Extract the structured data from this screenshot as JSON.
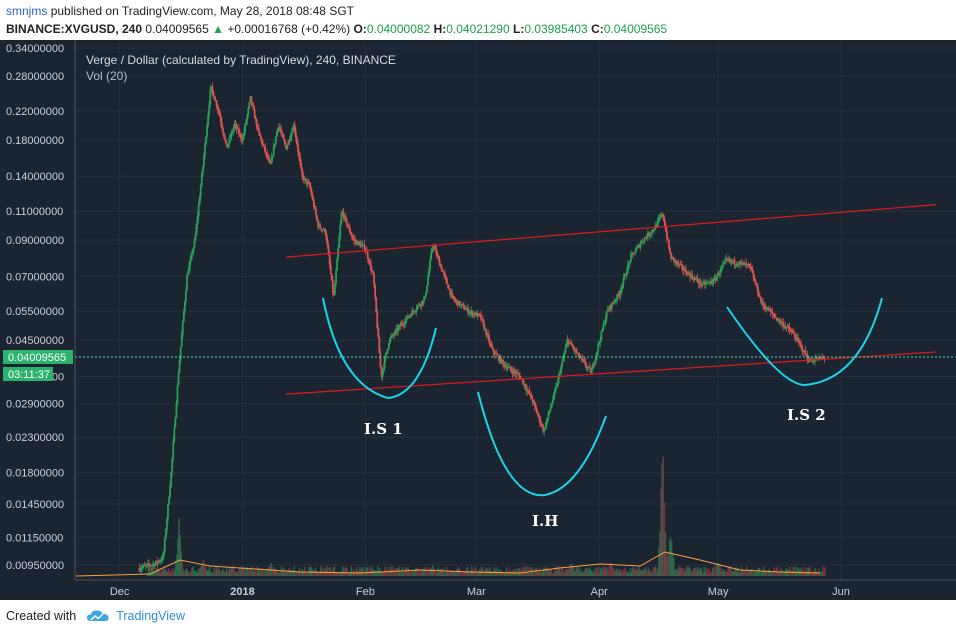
{
  "header": {
    "user": "smnjms",
    "published": "published on TradingView.com, May 28, 2018 08:48 SGT"
  },
  "ohlc": {
    "symbol": "BINANCE:XVGUSD, 240",
    "last": "0.04009565",
    "change": "+0.00016768 (+0.42%)",
    "o_label": "O:",
    "o": "0.04000082",
    "h_label": "H:",
    "h": "0.04021290",
    "l_label": "L:",
    "l": "0.03985403",
    "c_label": "C:",
    "c": "0.04009565"
  },
  "chart_data": {
    "type": "candlestick",
    "title": "Verge / Dollar (calculated by TradingView), 240, BINANCE",
    "subtitle": "Vol (20)",
    "y_scale": "log",
    "y_ticks": [
      "0.34000000",
      "0.28000000",
      "0.22000000",
      "0.18000000",
      "0.14000000",
      "0.11000000",
      "0.09000000",
      "0.07000000",
      "0.05500000",
      "0.04500000",
      "0.03500000",
      "0.02900000",
      "0.02300000",
      "0.01800000",
      "0.01450000",
      "0.01150000",
      "0.00950000"
    ],
    "x_ticks": [
      "Dec",
      "2018",
      "Feb",
      "Mar",
      "Apr",
      "May",
      "Jun"
    ],
    "last_price_label": "0.04009565",
    "countdown_label": "03:11:37",
    "price_path": [
      [
        "2017-12-06",
        0.0093
      ],
      [
        "2017-12-10",
        0.0096
      ],
      [
        "2017-12-12",
        0.01
      ],
      [
        "2017-12-14",
        0.018
      ],
      [
        "2017-12-16",
        0.038
      ],
      [
        "2017-12-18",
        0.07
      ],
      [
        "2017-12-20",
        0.09
      ],
      [
        "2017-12-22",
        0.15
      ],
      [
        "2017-12-24",
        0.26
      ],
      [
        "2017-12-26",
        0.22
      ],
      [
        "2017-12-28",
        0.17
      ],
      [
        "2017-12-30",
        0.2
      ],
      [
        "2018-01-01",
        0.18
      ],
      [
        "2018-01-03",
        0.24
      ],
      [
        "2018-01-05",
        0.19
      ],
      [
        "2018-01-08",
        0.15
      ],
      [
        "2018-01-10",
        0.2
      ],
      [
        "2018-01-12",
        0.17
      ],
      [
        "2018-01-14",
        0.2
      ],
      [
        "2018-01-16",
        0.14
      ],
      [
        "2018-01-18",
        0.13
      ],
      [
        "2018-01-20",
        0.1
      ],
      [
        "2018-01-22",
        0.095
      ],
      [
        "2018-01-24",
        0.06
      ],
      [
        "2018-01-26",
        0.11
      ],
      [
        "2018-01-29",
        0.09
      ],
      [
        "2018-02-01",
        0.085
      ],
      [
        "2018-02-03",
        0.07
      ],
      [
        "2018-02-05",
        0.035
      ],
      [
        "2018-02-07",
        0.045
      ],
      [
        "2018-02-10",
        0.05
      ],
      [
        "2018-02-13",
        0.055
      ],
      [
        "2018-02-16",
        0.06
      ],
      [
        "2018-02-18",
        0.088
      ],
      [
        "2018-02-20",
        0.075
      ],
      [
        "2018-02-23",
        0.06
      ],
      [
        "2018-02-27",
        0.055
      ],
      [
        "2018-03-02",
        0.053
      ],
      [
        "2018-03-05",
        0.042
      ],
      [
        "2018-03-08",
        0.038
      ],
      [
        "2018-03-12",
        0.035
      ],
      [
        "2018-03-15",
        0.03
      ],
      [
        "2018-03-18",
        0.024
      ],
      [
        "2018-03-21",
        0.032
      ],
      [
        "2018-03-24",
        0.045
      ],
      [
        "2018-03-27",
        0.04
      ],
      [
        "2018-03-30",
        0.036
      ],
      [
        "2018-04-03",
        0.055
      ],
      [
        "2018-04-06",
        0.062
      ],
      [
        "2018-04-09",
        0.08
      ],
      [
        "2018-04-12",
        0.09
      ],
      [
        "2018-04-15",
        0.098
      ],
      [
        "2018-04-17",
        0.108
      ],
      [
        "2018-04-19",
        0.08
      ],
      [
        "2018-04-23",
        0.072
      ],
      [
        "2018-04-27",
        0.066
      ],
      [
        "2018-04-30",
        0.068
      ],
      [
        "2018-05-03",
        0.078
      ],
      [
        "2018-05-06",
        0.077
      ],
      [
        "2018-05-09",
        0.075
      ],
      [
        "2018-05-12",
        0.058
      ],
      [
        "2018-05-16",
        0.052
      ],
      [
        "2018-05-20",
        0.047
      ],
      [
        "2018-05-24",
        0.039
      ],
      [
        "2018-05-28",
        0.04
      ]
    ],
    "volume_spikes": [
      [
        "2017-12-16",
        0.45
      ],
      [
        "2017-12-22",
        0.14
      ],
      [
        "2018-01-01",
        0.1
      ],
      [
        "2018-01-08",
        0.12
      ],
      [
        "2018-02-18",
        0.08
      ],
      [
        "2018-03-25",
        0.12
      ],
      [
        "2018-04-04",
        0.12
      ],
      [
        "2018-04-17",
        1.0
      ],
      [
        "2018-04-19",
        0.45
      ],
      [
        "2018-05-01",
        0.14
      ]
    ],
    "annotations": [
      {
        "type": "trendline",
        "color": "#e01a1a",
        "from": [
          "2018-01-12",
          0.08
        ],
        "to": [
          "2018-06-25",
          0.115
        ]
      },
      {
        "type": "trendline",
        "color": "#e01a1a",
        "from": [
          "2018-01-12",
          0.031
        ],
        "to": [
          "2018-06-25",
          0.0415
        ]
      },
      {
        "type": "curve",
        "color": "#18d6e8",
        "label": "I.S 1"
      },
      {
        "type": "curve",
        "color": "#18d6e8",
        "label": "I.H"
      },
      {
        "type": "curve",
        "color": "#18d6e8",
        "label": "I.S 2"
      }
    ],
    "labels": {
      "is1": "I.S 1",
      "ih": "I.H",
      "is2": "I.S 2"
    },
    "background_color": "#1b2431",
    "up_color": "#2a9d57",
    "down_color": "#d9534f"
  },
  "footer": {
    "created_with": "Created with",
    "brand": "TradingView"
  }
}
